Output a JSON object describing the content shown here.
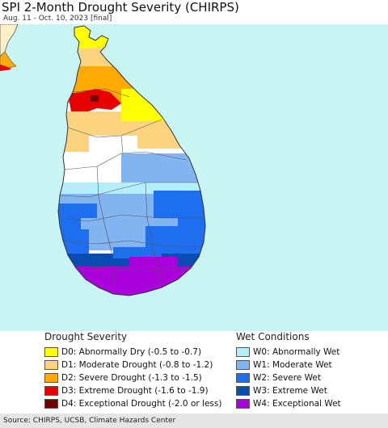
{
  "header": {
    "title": "SPI 2-Month Drought Severity (CHIRPS)",
    "subtitle": "Aug. 11 - Oct. 10, 2023 [final]"
  },
  "map": {
    "region": "Sri Lanka",
    "colors": {
      "ocean": "#c8f4f4",
      "land_neighbor": "#fff0c8",
      "border": "#555555"
    }
  },
  "legend": {
    "drought_heading": "Drought Severity",
    "wet_heading": "Wet Conditions",
    "drought_items": [
      {
        "label": "D0: Abnormally Dry (-0.5 to -0.7)",
        "color": "#ffff00"
      },
      {
        "label": "D1: Moderate Drought (-0.8 to -1.2)",
        "color": "#fcd37f"
      },
      {
        "label": "D2: Severe Drought (-1.3 to -1.5)",
        "color": "#ffaa00"
      },
      {
        "label": "D3: Extreme Drought (-1.6 to -1.9)",
        "color": "#e60000"
      },
      {
        "label": "D4: Exceptional Drought (-2.0 or less)",
        "color": "#730000"
      }
    ],
    "wet_items": [
      {
        "label": "W0: Abnormally Wet",
        "color": "#b4eefa"
      },
      {
        "label": "W1: Moderate Wet",
        "color": "#82b4f0"
      },
      {
        "label": "W2: Severe Wet",
        "color": "#1e6ef0"
      },
      {
        "label": "W3: Extreme Wet",
        "color": "#0a4bb4"
      },
      {
        "label": "W4: Exceptional Wet",
        "color": "#aa00dc"
      }
    ]
  },
  "footer": {
    "credit": "Source: CHIRPS, UCSB, Climate Hazards Center"
  }
}
